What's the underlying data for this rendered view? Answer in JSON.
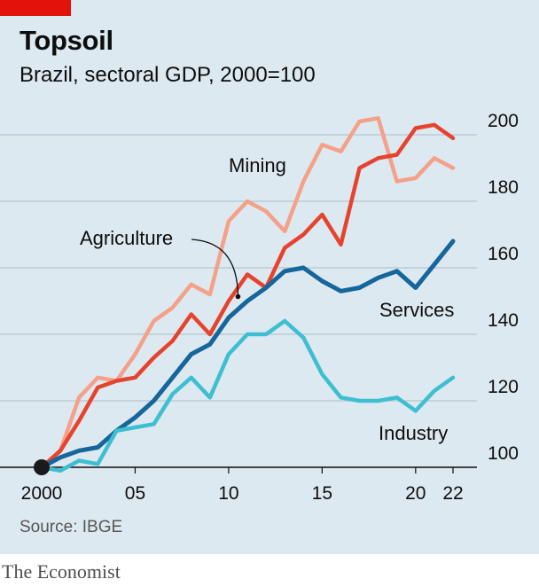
{
  "header": {
    "title": "Topsoil",
    "subtitle": "Brazil, sectoral GDP, 2000=100"
  },
  "footer": {
    "source": "Source: IBGE",
    "brand": "The Economist"
  },
  "colors": {
    "mining": "#f5a088",
    "agriculture": "#e6432f",
    "services": "#15669c",
    "industry": "#3ebfd1",
    "grid": "#b4c4ce",
    "panel": "#dde9f0",
    "accent": "#e3120b"
  },
  "chart_data": {
    "type": "line",
    "title": "Topsoil",
    "subtitle": "Brazil, sectoral GDP, 2000=100",
    "x": [
      2000,
      2001,
      2002,
      2003,
      2004,
      2005,
      2006,
      2007,
      2008,
      2009,
      2010,
      2011,
      2012,
      2013,
      2014,
      2015,
      2016,
      2017,
      2018,
      2019,
      2020,
      2021,
      2022
    ],
    "xlim": [
      2000,
      2022
    ],
    "ylim": [
      100,
      200
    ],
    "x_ticks": [
      {
        "value": 2000,
        "label": "2000"
      },
      {
        "value": 2005,
        "label": "05"
      },
      {
        "value": 2010,
        "label": "10"
      },
      {
        "value": 2015,
        "label": "15"
      },
      {
        "value": 2020,
        "label": "20"
      },
      {
        "value": 2022,
        "label": "22"
      }
    ],
    "y_ticks": [
      {
        "value": 100,
        "label": "100"
      },
      {
        "value": 120,
        "label": "120"
      },
      {
        "value": 140,
        "label": "140"
      },
      {
        "value": 160,
        "label": "160"
      },
      {
        "value": 180,
        "label": "180"
      },
      {
        "value": 200,
        "label": "200"
      }
    ],
    "y_axis_position": "right",
    "grid": true,
    "series": [
      {
        "name": "Mining",
        "key": "mining",
        "values": [
          100,
          105,
          121,
          127,
          126,
          134,
          144,
          148,
          155,
          152,
          174,
          180,
          177,
          171,
          186,
          197,
          195,
          204,
          205,
          186,
          187,
          193,
          190
        ]
      },
      {
        "name": "Agriculture",
        "key": "agriculture",
        "values": [
          100,
          105,
          114,
          124,
          126,
          127,
          133,
          138,
          146,
          140,
          150,
          158,
          154,
          166,
          170,
          176,
          167,
          190,
          193,
          194,
          202,
          203,
          199
        ]
      },
      {
        "name": "Services",
        "key": "services",
        "values": [
          100,
          103,
          105,
          106,
          111,
          115,
          120,
          127,
          134,
          137,
          145,
          150,
          154,
          159,
          160,
          156,
          153,
          154,
          157,
          159,
          154,
          161,
          168
        ]
      },
      {
        "name": "Industry",
        "key": "industry",
        "values": [
          100,
          99,
          102,
          101,
          111,
          112,
          113,
          122,
          127,
          121,
          134,
          140,
          140,
          144,
          139,
          128,
          121,
          120,
          120,
          121,
          117,
          123,
          127
        ]
      }
    ],
    "annotations": [
      {
        "text": "Mining",
        "series": "mining"
      },
      {
        "text": "Agriculture",
        "series": "agriculture",
        "arrow_to_year": 2010.5
      },
      {
        "text": "Services",
        "series": "services"
      },
      {
        "text": "Industry",
        "series": "industry"
      }
    ]
  }
}
